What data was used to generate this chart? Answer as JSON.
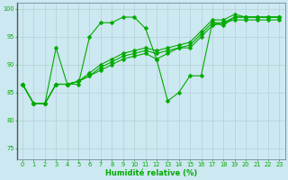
{
  "xlabel": "Humidité relative (%)",
  "bg_color": "#cce8f0",
  "grid_color": "#b0c8d0",
  "line_color": "#00aa00",
  "xlim": [
    -0.5,
    23.5
  ],
  "ylim": [
    73,
    101
  ],
  "yticks": [
    75,
    80,
    85,
    90,
    95,
    100
  ],
  "xticks": [
    0,
    1,
    2,
    3,
    4,
    5,
    6,
    7,
    8,
    9,
    10,
    11,
    12,
    13,
    14,
    15,
    16,
    17,
    18,
    19,
    20,
    21,
    22,
    23
  ],
  "series": [
    [
      86.5,
      83,
      83,
      93,
      86.5,
      86.5,
      95,
      97.5,
      97.5,
      98.5,
      98.5,
      96.5,
      91,
      83.5,
      85,
      88,
      88,
      97.5,
      97,
      98.5,
      98.5,
      98.5,
      98.5,
      98.5
    ],
    [
      86.5,
      83,
      83,
      86.5,
      86.5,
      87,
      88,
      89,
      90,
      91,
      91.5,
      92,
      91,
      92,
      93,
      93,
      95,
      97,
      97.5,
      98,
      98,
      98,
      98,
      98
    ],
    [
      86.5,
      83,
      83,
      86.5,
      86.5,
      87,
      88,
      89.5,
      90.5,
      91.5,
      92,
      92.5,
      92,
      92.5,
      93,
      93.5,
      95.5,
      97.5,
      97.5,
      98.5,
      98.5,
      98.5,
      98.5,
      98.5
    ],
    [
      86.5,
      83,
      83,
      86.5,
      86.5,
      87,
      88.5,
      90,
      91,
      92,
      92.5,
      93,
      92.5,
      93,
      93.5,
      94,
      96,
      98,
      98,
      99,
      98.5,
      98.5,
      98.5,
      98.5
    ]
  ],
  "xlabel_fontsize": 6.0,
  "tick_fontsize": 4.8,
  "marker_size": 2.5,
  "linewidth": 0.8
}
